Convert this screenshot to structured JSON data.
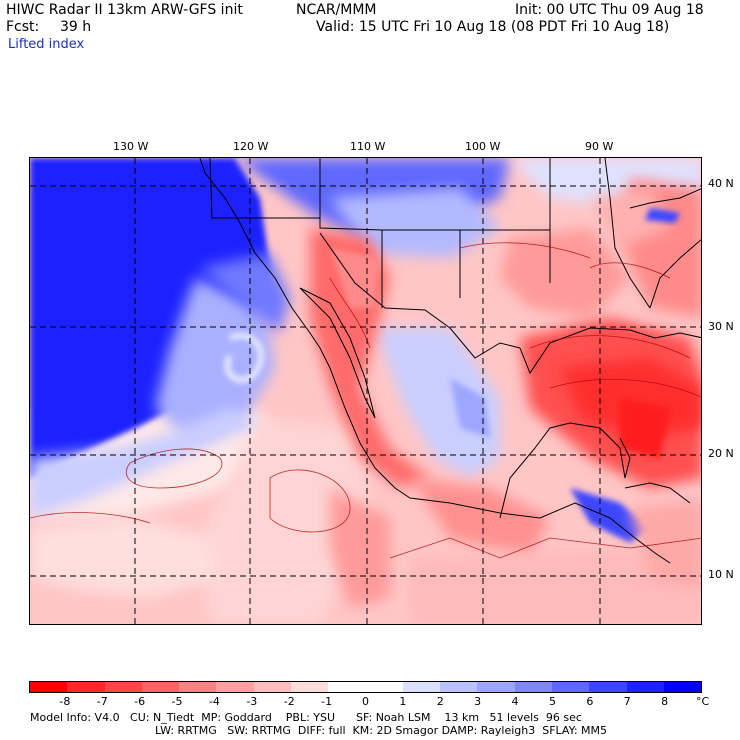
{
  "header": {
    "model": "HIWC Radar II 13km ARW-GFS init",
    "org": "NCAR/MMM",
    "init": "Init: 00 UTC Thu 09 Aug 18",
    "fcst_label": "Fcst:",
    "fcst_value": "39 h",
    "valid": "Valid: 15 UTC Fri 10 Aug 18 (08 PDT Fri 10 Aug 18)",
    "field": "Lifted index"
  },
  "map": {
    "lon_labels": [
      "130 W",
      "120 W",
      "110 W",
      "100 W",
      "90 W"
    ],
    "lat_labels": [
      "40 N",
      "30 N",
      "20 N",
      "10 N"
    ],
    "gridlines": "dashed"
  },
  "colorbar": {
    "labels": [
      "-8",
      "-7",
      "-6",
      "-5",
      "-4",
      "-3",
      "-2",
      "-1",
      "0",
      "1",
      "2",
      "3",
      "4",
      "5",
      "6",
      "7",
      "8"
    ],
    "unit": "°C",
    "colors": [
      "#ff0000",
      "#ff2828",
      "#ff4646",
      "#ff6464",
      "#ff8282",
      "#ffa0a0",
      "#ffbebe",
      "#ffdcdc",
      "#ffffff",
      "#ffffff",
      "#dce0ff",
      "#bcc2ff",
      "#9ea6ff",
      "#7f88ff",
      "#5e68ff",
      "#3c46ff",
      "#1b24ff",
      "#0000ff"
    ]
  },
  "footer": {
    "line1": "Model Info: V4.0   CU: N_Tiedt  MP: Goddard    PBL: YSU      SF: Noah LSM    13 km   51 levels  96 sec",
    "line2": "LW: RRTMG   SW: RRTMG  DIFF: full  KM: 2D Smagor DAMP: Rayleigh3  SFLAY: MM5"
  }
}
